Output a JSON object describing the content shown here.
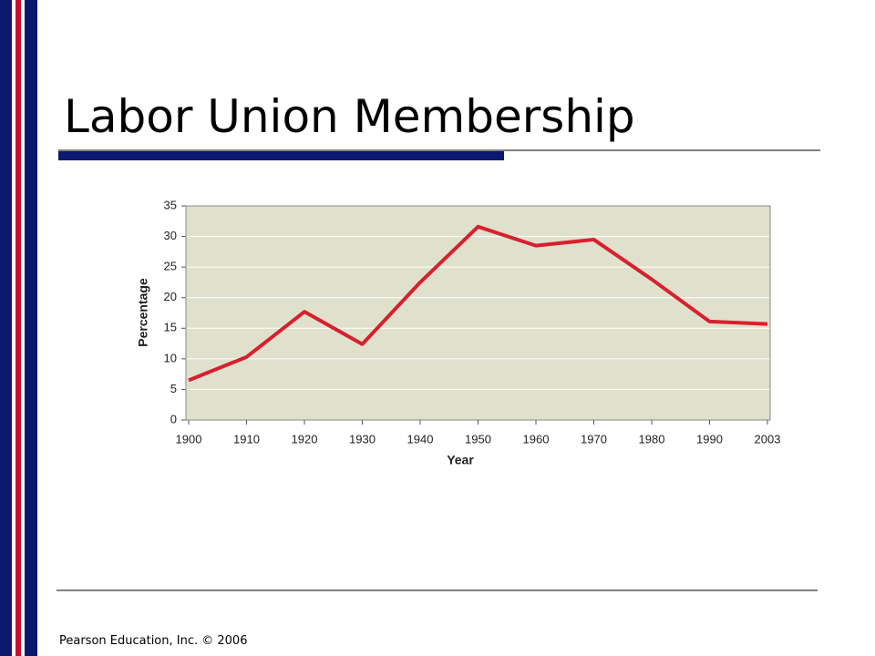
{
  "title": "Labor Union Membership",
  "footer": "Pearson Education, Inc. © 2006",
  "chart_data": {
    "type": "line",
    "categories": [
      "1900",
      "1910",
      "1920",
      "1930",
      "1940",
      "1950",
      "1960",
      "1970",
      "1980",
      "1990",
      "2003"
    ],
    "series": [
      {
        "color": "#d7202e",
        "values": [
          6.5,
          10.3,
          17.7,
          12.4,
          22.5,
          31.6,
          28.5,
          29.5,
          23,
          16.1,
          15.7
        ]
      }
    ],
    "x_label": "Year",
    "y_label": "Percentage",
    "ylim": [
      0,
      35
    ],
    "yticks": [
      0,
      5,
      10,
      15,
      20,
      25,
      30,
      35
    ],
    "grid": true
  }
}
